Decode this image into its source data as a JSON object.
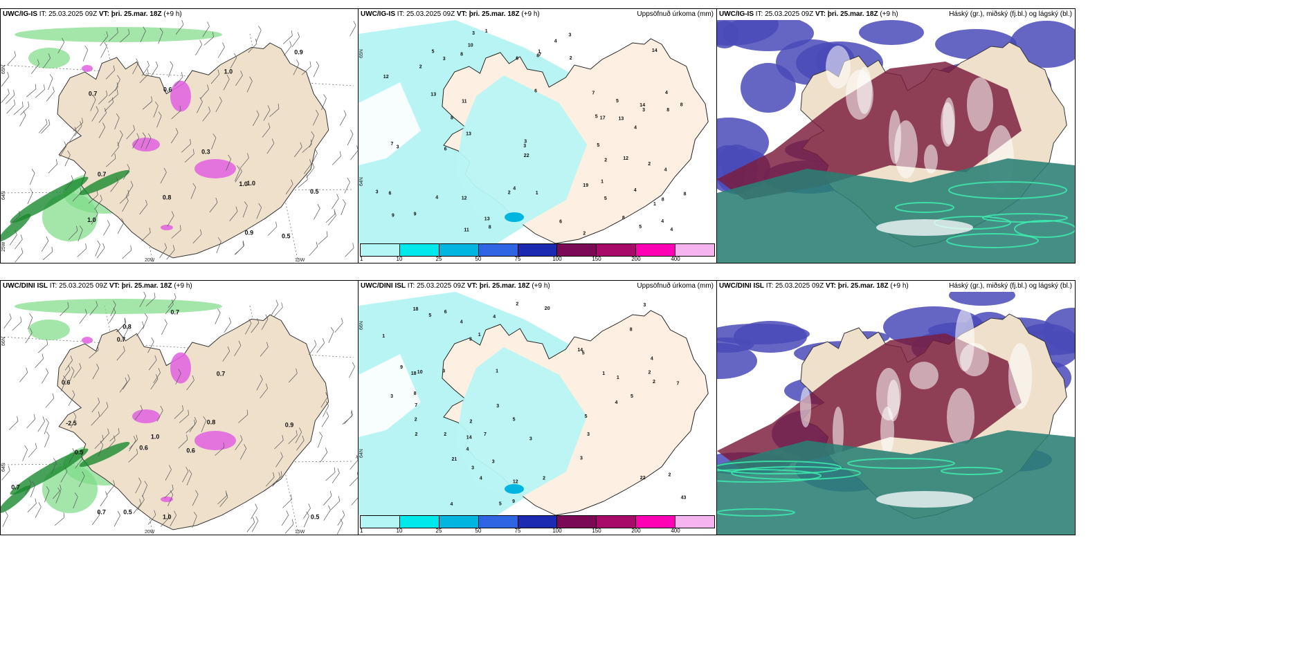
{
  "rows": [
    {
      "model": "UWC/IG-IS",
      "it_label": "IT:",
      "it_value": "25.03.2025 09Z",
      "vt_label": "VT:",
      "vt_value": "þri. 25.mar. 18Z",
      "lead": "(+9 h)",
      "precip_title": "Uppsöfnuð úrkoma (mm)",
      "cloud_title": "Háský (gr.), miðský (fj.bl.) og lágský (bl.)",
      "lat_labels": [
        "65N",
        "64N",
        "25W"
      ],
      "lon_labels": [
        "20W",
        "15W"
      ],
      "lat_labels_mid": [
        "65N",
        "64N"
      ],
      "precip_numbers": [
        "4",
        "4",
        "8",
        "6",
        "9",
        "10",
        "14",
        "12",
        "14",
        "13",
        "8",
        "12",
        "4",
        "8",
        "6",
        "2",
        "1",
        "8",
        "4",
        "3",
        "7",
        "3",
        "6",
        "5",
        "13",
        "2",
        "4",
        "2",
        "7",
        "8",
        "6",
        "5",
        "11",
        "3",
        "2",
        "8",
        "17",
        "6",
        "5",
        "13",
        "12",
        "13",
        "8",
        "8",
        "4",
        "2",
        "9",
        "3",
        "11",
        "5",
        "4",
        "22",
        "7",
        "8",
        "19",
        "5",
        "3",
        "5",
        "2",
        "1",
        "1",
        "1",
        "4",
        "1",
        "3",
        "4",
        "3",
        "3"
      ],
      "wind_numbers": [
        "1.0",
        "0.5",
        "0.7",
        "0.9",
        "1.0",
        "0.7",
        "0.8",
        "0.6",
        "1.0",
        "1.0",
        "0.3",
        "0.5",
        "0.9"
      ]
    },
    {
      "model": "UWC/DINI ISL",
      "it_label": "IT:",
      "it_value": "25.03.2025 09Z",
      "vt_label": "VT:",
      "vt_value": "þri. 25.mar. 18Z",
      "lead": "(+9 h)",
      "precip_title": "Uppsöfnuð úrkoma (mm)",
      "cloud_title": "Háský (gr.), miðský (fj.bl.) og lágský (bl.)",
      "lat_labels": [
        "66N",
        "64N"
      ],
      "lon_labels": [
        "20W",
        "15W"
      ],
      "lat_labels_mid": [
        "66N",
        "64N"
      ],
      "precip_numbers": [
        "7",
        "4",
        "2",
        "3",
        "3",
        "4",
        "3",
        "3",
        "14",
        "12",
        "21",
        "22",
        "18",
        "9",
        "5",
        "3",
        "4",
        "2",
        "2",
        "10",
        "5",
        "4",
        "3",
        "5",
        "7",
        "2",
        "3",
        "4",
        "2",
        "3",
        "4",
        "9",
        "5",
        "5",
        "2",
        "8",
        "6",
        "5",
        "4",
        "8",
        "1",
        "7",
        "14",
        "20",
        "18",
        "43",
        "2",
        "2",
        "3",
        "1",
        "1",
        "1",
        "2",
        "1",
        "3"
      ],
      "wind_numbers": [
        "0.5",
        "0.7",
        "0.7",
        "0.6",
        "0.8",
        "0.7",
        "0.6",
        "1.0",
        "0.5",
        "0.6",
        "0.9",
        "1.0",
        "0.7",
        "-2.5",
        "0.8",
        "0.5",
        "0.7"
      ]
    }
  ],
  "colorbar": {
    "ticks": [
      "1",
      "10",
      "25",
      "50",
      "75",
      "100",
      "150",
      "200",
      "400"
    ],
    "colors": [
      "#b4f6f6",
      "#00e8ea",
      "#00b5e0",
      "#2f64e2",
      "#1b2ab0",
      "#7a0a55",
      "#a80a6a",
      "#ff00b4",
      "#f5b4f0"
    ]
  },
  "colors": {
    "land": "#efe0cc",
    "land_precip_panel": "#fdf0e2",
    "precip_light": "#b8f4f4",
    "wind_green": "#7ddc86",
    "wind_green_dark": "#1a8a2e",
    "precip_pink": "#e060e0",
    "cloud_high": "#7a1b3a",
    "cloud_mid": "#4a4ab8",
    "cloud_low": "#2a7e74"
  }
}
